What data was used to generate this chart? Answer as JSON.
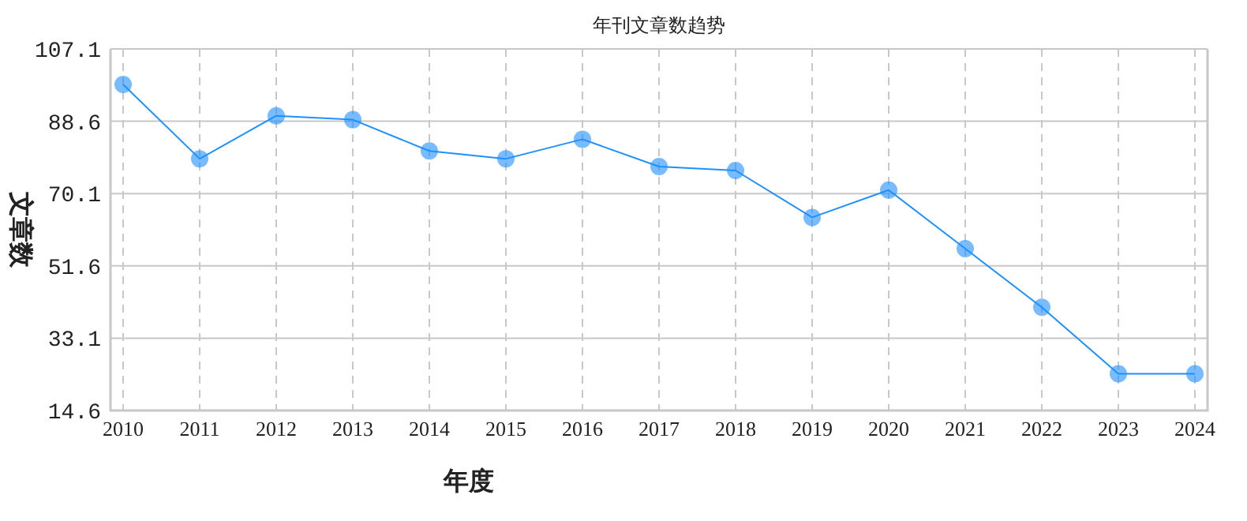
{
  "chart_data": {
    "type": "line",
    "title": "年刊文章数趋势",
    "xlabel": "年度",
    "ylabel": "文章数",
    "categories": [
      "2010",
      "2011",
      "2012",
      "2013",
      "2014",
      "2015",
      "2016",
      "2017",
      "2018",
      "2019",
      "2020",
      "2021",
      "2022",
      "2023",
      "2024"
    ],
    "series": [
      {
        "color": "#1e90ff",
        "values": [
          98,
          79,
          90,
          89,
          81,
          79,
          84,
          77,
          76,
          64,
          71,
          56,
          41,
          24,
          24
        ]
      }
    ],
    "ylim": [
      14.6,
      107.1
    ],
    "yticks": [
      14.6,
      33.1,
      51.6,
      70.1,
      88.6,
      107.1
    ],
    "grid": true,
    "marker": "circle",
    "line_style": "solid"
  }
}
